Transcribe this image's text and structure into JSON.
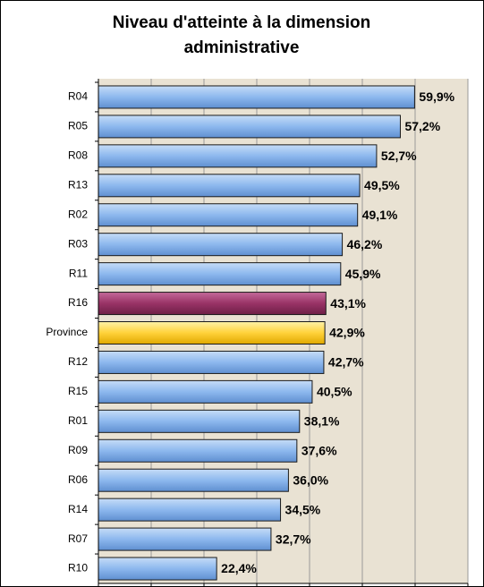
{
  "chart_data": {
    "type": "bar",
    "orientation": "horizontal",
    "title": "Niveau d'atteinte à la dimension administrative",
    "categories": [
      "R04",
      "R05",
      "R08",
      "R13",
      "R02",
      "R03",
      "R11",
      "R16",
      "Province",
      "R12",
      "R15",
      "R01",
      "R09",
      "R06",
      "R14",
      "R07",
      "R10"
    ],
    "values": [
      59.9,
      57.2,
      52.7,
      49.5,
      49.1,
      46.2,
      45.9,
      43.1,
      42.9,
      42.7,
      40.5,
      38.1,
      37.6,
      36.0,
      34.5,
      32.7,
      22.4
    ],
    "value_labels": [
      "59,9%",
      "57,2%",
      "52,7%",
      "49,5%",
      "49,1%",
      "46,2%",
      "45,9%",
      "43,1%",
      "42,9%",
      "42,7%",
      "40,5%",
      "38,1%",
      "37,6%",
      "36,0%",
      "34,5%",
      "32,7%",
      "22,4%"
    ],
    "colors": [
      "#8db8ee",
      "#8db8ee",
      "#8db8ee",
      "#8db8ee",
      "#8db8ee",
      "#8db8ee",
      "#8db8ee",
      "#993366",
      "#ffd23a",
      "#8db8ee",
      "#8db8ee",
      "#8db8ee",
      "#8db8ee",
      "#8db8ee",
      "#8db8ee",
      "#8db8ee",
      "#8db8ee"
    ],
    "xlim": [
      0,
      70
    ],
    "xticks": [
      0,
      10,
      20,
      30,
      40,
      50,
      60,
      70
    ],
    "grid": true
  }
}
